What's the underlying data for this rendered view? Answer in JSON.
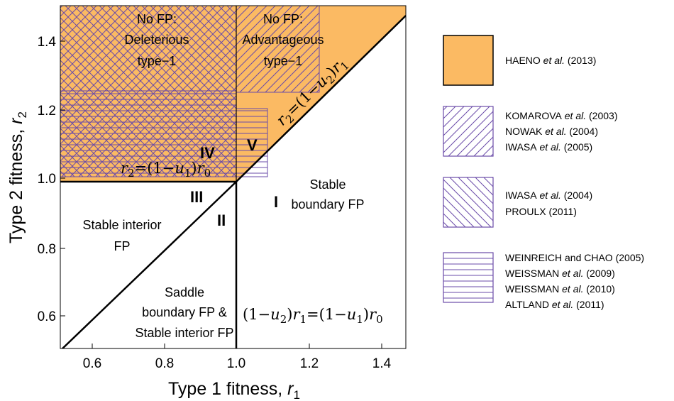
{
  "axes": {
    "x_title": "Type 1 fitness, ",
    "x_var": "r",
    "x_sub": "1",
    "y_title": "Type 2 fitness, ",
    "y_var": "r",
    "y_sub": "2",
    "x_ticks": [
      "0.6",
      "0.8",
      "1.0",
      "1.2",
      "1.4"
    ],
    "y_ticks": [
      "0.6",
      "0.8",
      "1.0",
      "1.2",
      "1.4"
    ],
    "xlim": [
      0.5,
      1.5
    ],
    "ylim": [
      0.5,
      1.5
    ]
  },
  "regions": {
    "top_left_1": "No FP:",
    "top_left_2": "Deleterious",
    "top_left_3": "type−1",
    "top_right_1": "No FP:",
    "top_right_2": "Advantageous",
    "top_right_3": "type−1",
    "right_1": "Stable",
    "right_2": "boundary FP",
    "left_1": "Stable interior",
    "left_2": "FP",
    "bottom_1": "Saddle",
    "bottom_2": "boundary FP &",
    "bottom_3": "Stable interior FP"
  },
  "roman": {
    "I": "I",
    "II": "II",
    "III": "III",
    "IV": "IV",
    "V": "V"
  },
  "equations": {
    "diag_r": "r",
    "diag_2": "2",
    "diag_eq": "=(1−",
    "diag_u": "u",
    "diag_u2": "2",
    "diag_close": ")",
    "diag_r1": "r",
    "diag_1": "1",
    "horiz_r": "r",
    "horiz_2": "2",
    "horiz_eq": "=(1−",
    "horiz_u": "u",
    "horiz_u1": "1",
    "horiz_close": ")",
    "horiz_r0": "r",
    "horiz_0": "0",
    "vert_open": "(1−",
    "vert_u": "u",
    "vert_u2": "2",
    "vert_close": ")",
    "vert_r": "r",
    "vert_1": "1",
    "vert_eq": "=(1−",
    "vert_u_b": "u",
    "vert_u1": "1",
    "vert_close_b": ")",
    "vert_r0": "r",
    "vert_0": "0"
  },
  "legend": {
    "haeno": {
      "name": "HAENO",
      "etal": " et al.",
      "year": " (2013)"
    },
    "komarova": {
      "name": "KOMAROVA",
      "etal": " et al.",
      "year": " (2003)"
    },
    "nowak": {
      "name": "NOWAK",
      "etal": " et al.",
      "year": " (2004)"
    },
    "iwasa05": {
      "name": "IWASA",
      "etal": " et al.",
      "year": " (2005)"
    },
    "iwasa04": {
      "name": "IWASA",
      "etal": " et al.",
      "year": " (2004)"
    },
    "proulx": "PROULX (2011)",
    "weinreich": "WEINREICH and CHAO (2005)",
    "weissman09": {
      "name": "WEISSMAN",
      "etal": " et al.",
      "year": " (2009)"
    },
    "weissman10": {
      "name": "WEISSMAN",
      "etal": " et al.",
      "year": " (2010)"
    },
    "altland": {
      "name": "ALTLAND",
      "etal": " et al.",
      "year": " (2011)"
    }
  },
  "colors": {
    "haeno_fill": "#FBBA63",
    "hatch": "#6A4BA8",
    "boundary": "#000000"
  }
}
